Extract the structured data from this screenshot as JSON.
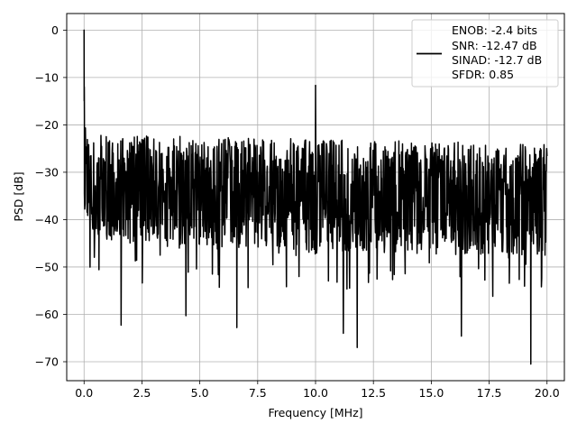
{
  "chart_data": {
    "type": "line",
    "xlabel": "Frequency [MHz]",
    "ylabel": "PSD [dB]",
    "xlim": [
      -0.75,
      20.75
    ],
    "ylim": [
      -74,
      3.5
    ],
    "xticks": [
      0.0,
      2.5,
      5.0,
      7.5,
      10.0,
      12.5,
      15.0,
      17.5,
      20.0
    ],
    "xtick_labels": [
      "0.0",
      "2.5",
      "5.0",
      "7.5",
      "10.0",
      "12.5",
      "15.0",
      "17.5",
      "20.0"
    ],
    "yticks": [
      0,
      -10,
      -20,
      -30,
      -40,
      -50,
      -60,
      -70
    ],
    "ytick_labels": [
      "0",
      "−10",
      "−20",
      "−30",
      "−40",
      "−50",
      "−60",
      "−70"
    ],
    "grid": true,
    "legend_position": "top-right",
    "series": [
      {
        "color": "#000000",
        "x_start": 0.0,
        "x_end": 20.0,
        "noise_band_approx": {
          "upper": [
            -22,
            -24
          ],
          "lower": [
            -45,
            -48
          ],
          "mean": [
            -33,
            -35
          ]
        },
        "peaks": [
          {
            "x": 0.0,
            "y": 0.0
          },
          {
            "x": 10.0,
            "y": -11.7
          }
        ],
        "deep_dips": [
          {
            "x": 1.6,
            "y": -62.3
          },
          {
            "x": 4.4,
            "y": -60.3
          },
          {
            "x": 6.6,
            "y": -62.8
          },
          {
            "x": 11.2,
            "y": -64.0
          },
          {
            "x": 11.8,
            "y": -67.0
          },
          {
            "x": 16.3,
            "y": -64.6
          },
          {
            "x": 19.3,
            "y": -70.5
          }
        ]
      }
    ],
    "legend": {
      "lines": [
        "ENOB: -2.4 bits",
        "SNR: -12.47 dB",
        "SINAD: -12.7 dB",
        "SFDR: 0.85"
      ]
    }
  }
}
